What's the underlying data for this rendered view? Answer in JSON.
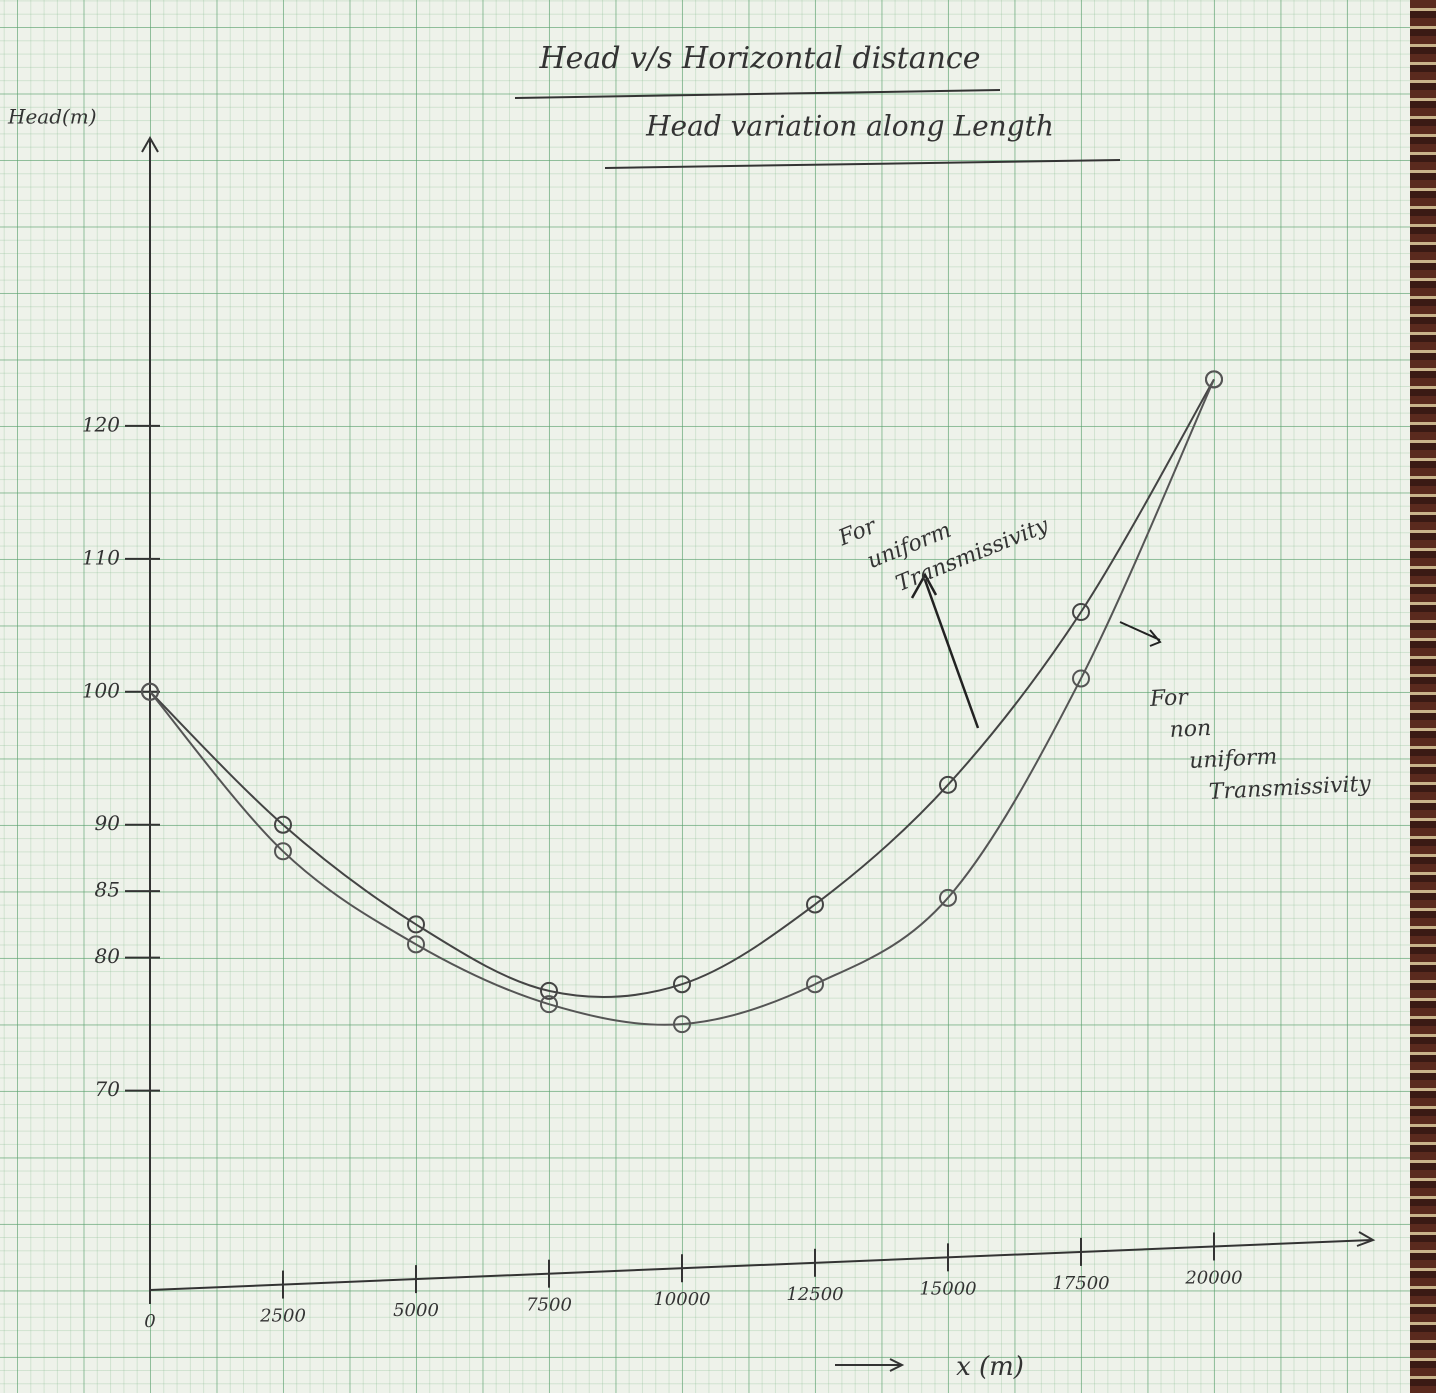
{
  "chart_data": {
    "type": "line",
    "title": "Head v/s Horizontal distance",
    "subtitle": "Head variation along Length",
    "y_label": "Head(m)",
    "x_label": "x (m)",
    "x": [
      0,
      2500,
      5000,
      7500,
      10000,
      12500,
      15000,
      17500,
      20000
    ],
    "series": [
      {
        "name": "For uniform Transmissivity",
        "color": "#444444",
        "values": [
          100,
          90,
          82.5,
          77.5,
          78,
          84,
          93,
          106,
          123.5
        ]
      },
      {
        "name": "For non uniform Transmissivity",
        "color": "#555555",
        "values": [
          100,
          88,
          81,
          76.5,
          75,
          78,
          84.5,
          101,
          123.5
        ]
      }
    ],
    "xlim": [
      0,
      22500
    ],
    "ylim": [
      55,
      140
    ],
    "xticks": [
      0,
      2500,
      5000,
      7500,
      10000,
      12500,
      15000,
      17500,
      20000
    ],
    "yticks": [
      70,
      80,
      85,
      90,
      100,
      110,
      120
    ]
  }
}
